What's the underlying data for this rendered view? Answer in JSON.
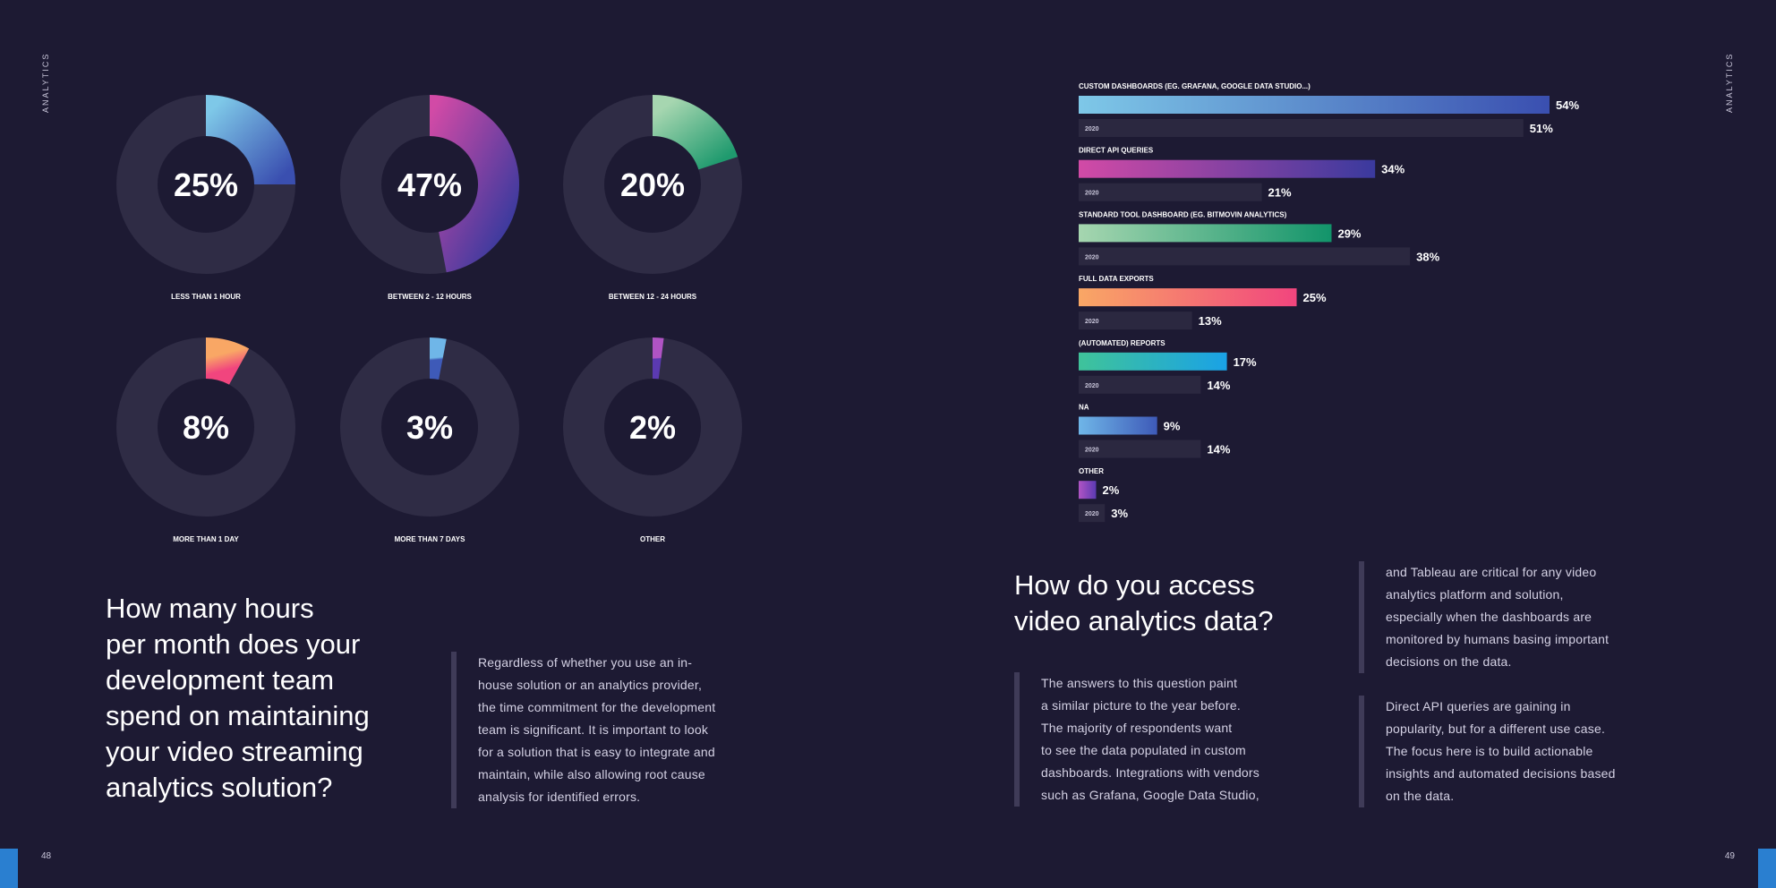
{
  "side_label": "ANALYTICS",
  "page_left": "48",
  "page_right": "49",
  "left": {
    "heading_lines": [
      "How many hours",
      "per month does your",
      "development team",
      "spend on maintaining",
      "your video streaming",
      "analytics solution?"
    ],
    "body_lines": [
      "Regardless of whether you use an in-",
      "house solution or an analytics provider,",
      "the time commitment for the development",
      "team is significant. It is important to look",
      "for a solution that is easy to integrate and",
      "maintain, while also allowing root cause",
      "analysis for identified errors."
    ]
  },
  "right": {
    "heading_lines": [
      "How do you access",
      "video analytics data?"
    ],
    "body1_lines": [
      "The answers to this question paint",
      "a similar picture to the year before.",
      "The majority of respondents want",
      "to see the data populated in custom",
      "dashboards. Integrations with vendors",
      "such as Grafana, Google Data Studio,"
    ],
    "body2_lines": [
      "and Tableau are critical for any video",
      "analytics platform and solution,",
      "especially when the dashboards are",
      "monitored by humans basing important",
      "decisions on the data."
    ],
    "body3_lines": [
      "Direct API queries are gaining in",
      "popularity, but for a different use case.",
      "The focus here is to build actionable",
      "insights and automated decisions based",
      "on the data."
    ]
  },
  "chart_data": [
    {
      "type": "pie",
      "variant": "donut",
      "categories": [
        "LESS THAN 1 HOUR",
        "BETWEEN 2 - 12 HOURS",
        "BETWEEN 12 - 24 HOURS",
        "MORE THAN 1 DAY",
        "MORE THAN 7 DAYS",
        "OTHER"
      ],
      "values": [
        25,
        47,
        20,
        8,
        3,
        2
      ],
      "value_labels": [
        "25%",
        "47%",
        "20%",
        "8%",
        "3%",
        "2%"
      ],
      "colors": [
        [
          "#7ec8e8",
          "#3a4fb0"
        ],
        [
          "#d24aa6",
          "#3a3a9e"
        ],
        [
          "#a6d6b0",
          "#1f9a6e"
        ],
        [
          "#f9a765",
          "#f1457e"
        ],
        [
          "#6fb6e8",
          "#3e5ab8"
        ],
        [
          "#b054c4",
          "#5b3ab2"
        ]
      ],
      "track_color": "#2f2c45"
    },
    {
      "type": "bar",
      "orientation": "horizontal",
      "categories": [
        "CUSTOM DASHBOARDS (EG. GRAFANA, GOOGLE DATA STUDIO...)",
        "DIRECT API QUERIES",
        "STANDARD TOOL DASHBOARD (EG. BITMOVIN ANALYTICS)",
        "FULL DATA EXPORTS",
        "(AUTOMATED) REPORTS",
        "NA",
        "OTHER"
      ],
      "series": [
        {
          "name": "",
          "values": [
            54,
            34,
            29,
            25,
            17,
            9,
            2
          ],
          "labels": [
            "54%",
            "34%",
            "29%",
            "25%",
            "17%",
            "9%",
            "2%"
          ]
        },
        {
          "name": "2020",
          "values": [
            51,
            21,
            38,
            13,
            14,
            14,
            3
          ],
          "labels": [
            "51%",
            "21%",
            "38%",
            "13%",
            "14%",
            "14%",
            "3%"
          ]
        }
      ],
      "year_tag": "2020",
      "colors": [
        [
          "#7ec8e8",
          "#3a4fb0"
        ],
        [
          "#d24aa6",
          "#3a3a9e"
        ],
        [
          "#a6d6b0",
          "#12946a"
        ],
        [
          "#f9a765",
          "#f1457e"
        ],
        [
          "#3fc39a",
          "#1aa2e6"
        ],
        [
          "#6fb6e8",
          "#3e5ab8"
        ],
        [
          "#b054c4",
          "#5b3ab2"
        ]
      ],
      "prior_color": "#2b2840",
      "xlim": [
        0,
        54
      ]
    }
  ]
}
